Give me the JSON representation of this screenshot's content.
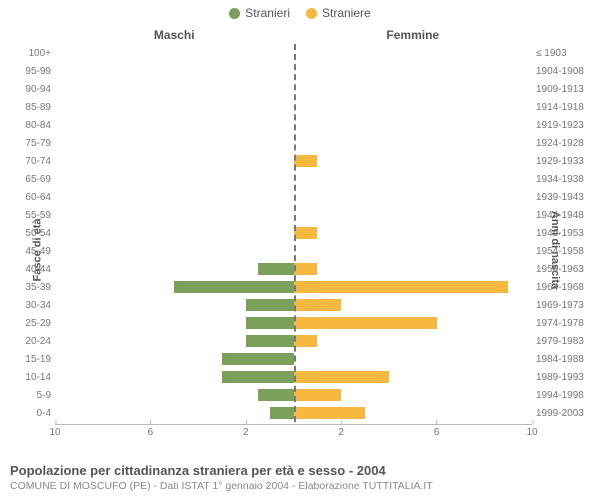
{
  "legend": {
    "male": {
      "label": "Stranieri",
      "color": "#7ba05b"
    },
    "female": {
      "label": "Straniere",
      "color": "#f5b93f"
    }
  },
  "headers": {
    "left": "Maschi",
    "right": "Femmine"
  },
  "axis_labels": {
    "left": "Fasce di età",
    "right": "Anni di nascita"
  },
  "x_axis": {
    "max": 10,
    "ticks_left": [
      10,
      6,
      2
    ],
    "ticks_right": [
      2,
      6,
      10
    ]
  },
  "chart": {
    "type": "population-pyramid",
    "background_color": "#ffffff",
    "rows": [
      {
        "age": "100+",
        "birth": "≤ 1903",
        "m": 0,
        "f": 0
      },
      {
        "age": "95-99",
        "birth": "1904-1908",
        "m": 0,
        "f": 0
      },
      {
        "age": "90-94",
        "birth": "1909-1913",
        "m": 0,
        "f": 0
      },
      {
        "age": "85-89",
        "birth": "1914-1918",
        "m": 0,
        "f": 0
      },
      {
        "age": "80-84",
        "birth": "1919-1923",
        "m": 0,
        "f": 0
      },
      {
        "age": "75-79",
        "birth": "1924-1928",
        "m": 0,
        "f": 0
      },
      {
        "age": "70-74",
        "birth": "1929-1933",
        "m": 0,
        "f": 1
      },
      {
        "age": "65-69",
        "birth": "1934-1938",
        "m": 0,
        "f": 0
      },
      {
        "age": "60-64",
        "birth": "1939-1943",
        "m": 0,
        "f": 0
      },
      {
        "age": "55-59",
        "birth": "1944-1948",
        "m": 0,
        "f": 0
      },
      {
        "age": "50-54",
        "birth": "1949-1953",
        "m": 0,
        "f": 1
      },
      {
        "age": "45-49",
        "birth": "1954-1958",
        "m": 0,
        "f": 0
      },
      {
        "age": "40-44",
        "birth": "1959-1963",
        "m": 1.5,
        "f": 1
      },
      {
        "age": "35-39",
        "birth": "1964-1968",
        "m": 5,
        "f": 9
      },
      {
        "age": "30-34",
        "birth": "1969-1973",
        "m": 2,
        "f": 2
      },
      {
        "age": "25-29",
        "birth": "1974-1978",
        "m": 2,
        "f": 6
      },
      {
        "age": "20-24",
        "birth": "1979-1983",
        "m": 2,
        "f": 1
      },
      {
        "age": "15-19",
        "birth": "1984-1988",
        "m": 3,
        "f": 0
      },
      {
        "age": "10-14",
        "birth": "1989-1993",
        "m": 3,
        "f": 4
      },
      {
        "age": "5-9",
        "birth": "1994-1998",
        "m": 1.5,
        "f": 2
      },
      {
        "age": "0-4",
        "birth": "1999-2003",
        "m": 1,
        "f": 3
      }
    ]
  },
  "caption": {
    "title": "Popolazione per cittadinanza straniera per età e sesso - 2004",
    "sub": "COMUNE DI MOSCUFO (PE) - Dati ISTAT 1° gennaio 2004 - Elaborazione TUTTITALIA.IT"
  }
}
